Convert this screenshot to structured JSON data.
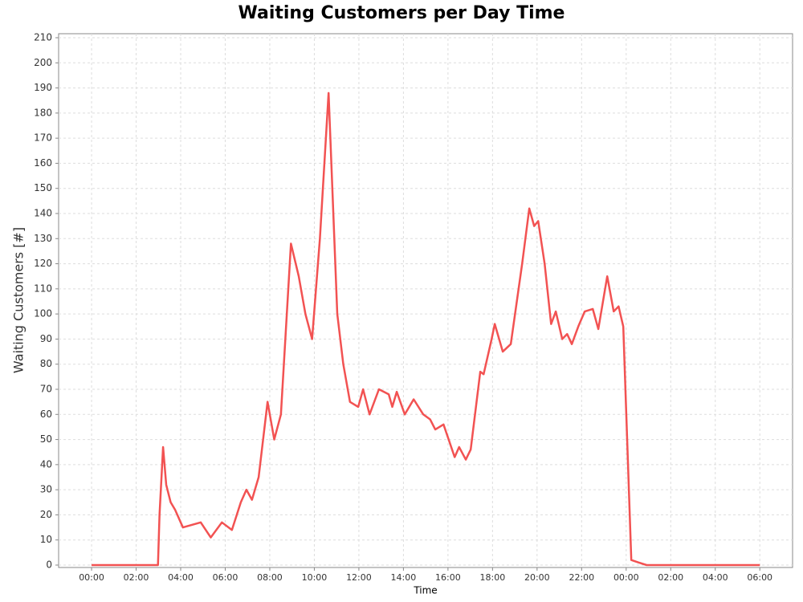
{
  "chart_data": {
    "type": "line",
    "title": "Waiting Customers per Day Time",
    "x_label": "Time",
    "y_label": "Waiting Customers [#]",
    "grid": true,
    "series": [
      {
        "name": "Waiting Customers",
        "color": "#f25252",
        "x": [
          0,
          2.98,
          3.05,
          3.21,
          3.35,
          3.55,
          3.75,
          4.1,
          4.9,
          5.35,
          5.85,
          6.3,
          6.7,
          6.95,
          7.2,
          7.5,
          7.9,
          8.2,
          8.5,
          8.95,
          9.3,
          9.6,
          9.9,
          10.25,
          10.64,
          11.03,
          11.3,
          11.6,
          11.97,
          12.19,
          12.48,
          12.9,
          13.34,
          13.5,
          13.7,
          14.06,
          14.46,
          14.89,
          15.2,
          15.43,
          15.8,
          16.3,
          16.5,
          16.8,
          17.02,
          17.45,
          17.6,
          17.96,
          18.1,
          18.46,
          18.82,
          19.33,
          19.65,
          19.87,
          20.05,
          20.34,
          20.63,
          20.84,
          21.13,
          21.35,
          21.56,
          21.85,
          22.14,
          22.5,
          22.75,
          23.15,
          23.44,
          23.66,
          23.87,
          24.23,
          24.56,
          24.92,
          30
        ],
        "values": [
          0,
          0,
          20,
          47,
          32,
          25,
          22,
          15,
          17,
          11,
          17,
          14,
          25,
          30,
          26,
          35,
          65,
          50,
          60,
          128,
          115,
          100,
          90,
          130,
          188,
          100,
          80,
          65,
          63,
          70,
          60,
          70,
          68,
          63,
          69,
          60,
          66,
          60,
          58,
          54,
          56,
          43,
          47,
          42,
          46,
          77,
          76,
          90,
          96,
          85,
          88,
          120,
          142,
          135,
          137,
          120,
          96,
          101,
          90,
          92,
          88,
          95,
          101,
          102,
          94,
          115,
          101,
          103,
          95,
          2,
          1,
          0,
          0
        ]
      }
    ],
    "xlim": [
      -1.48,
      31.47
    ],
    "xticks": [
      {
        "value": 0,
        "label": "00:00"
      },
      {
        "value": 2,
        "label": "02:00"
      },
      {
        "value": 4,
        "label": "04:00"
      },
      {
        "value": 6,
        "label": "06:00"
      },
      {
        "value": 8,
        "label": "08:00"
      },
      {
        "value": 10,
        "label": "10:00"
      },
      {
        "value": 12,
        "label": "12:00"
      },
      {
        "value": 14,
        "label": "14:00"
      },
      {
        "value": 16,
        "label": "16:00"
      },
      {
        "value": 18,
        "label": "18:00"
      },
      {
        "value": 20,
        "label": "20:00"
      },
      {
        "value": 22,
        "label": "22:00"
      },
      {
        "value": 24,
        "label": "00:00"
      },
      {
        "value": 26,
        "label": "02:00"
      },
      {
        "value": 28,
        "label": "04:00"
      },
      {
        "value": 30,
        "label": "06:00"
      }
    ],
    "ylim": [
      -0.96,
      211.6
    ],
    "yticks": [
      0,
      10,
      20,
      30,
      40,
      50,
      60,
      70,
      80,
      90,
      100,
      110,
      120,
      130,
      140,
      150,
      160,
      170,
      180,
      190,
      200,
      210
    ]
  }
}
